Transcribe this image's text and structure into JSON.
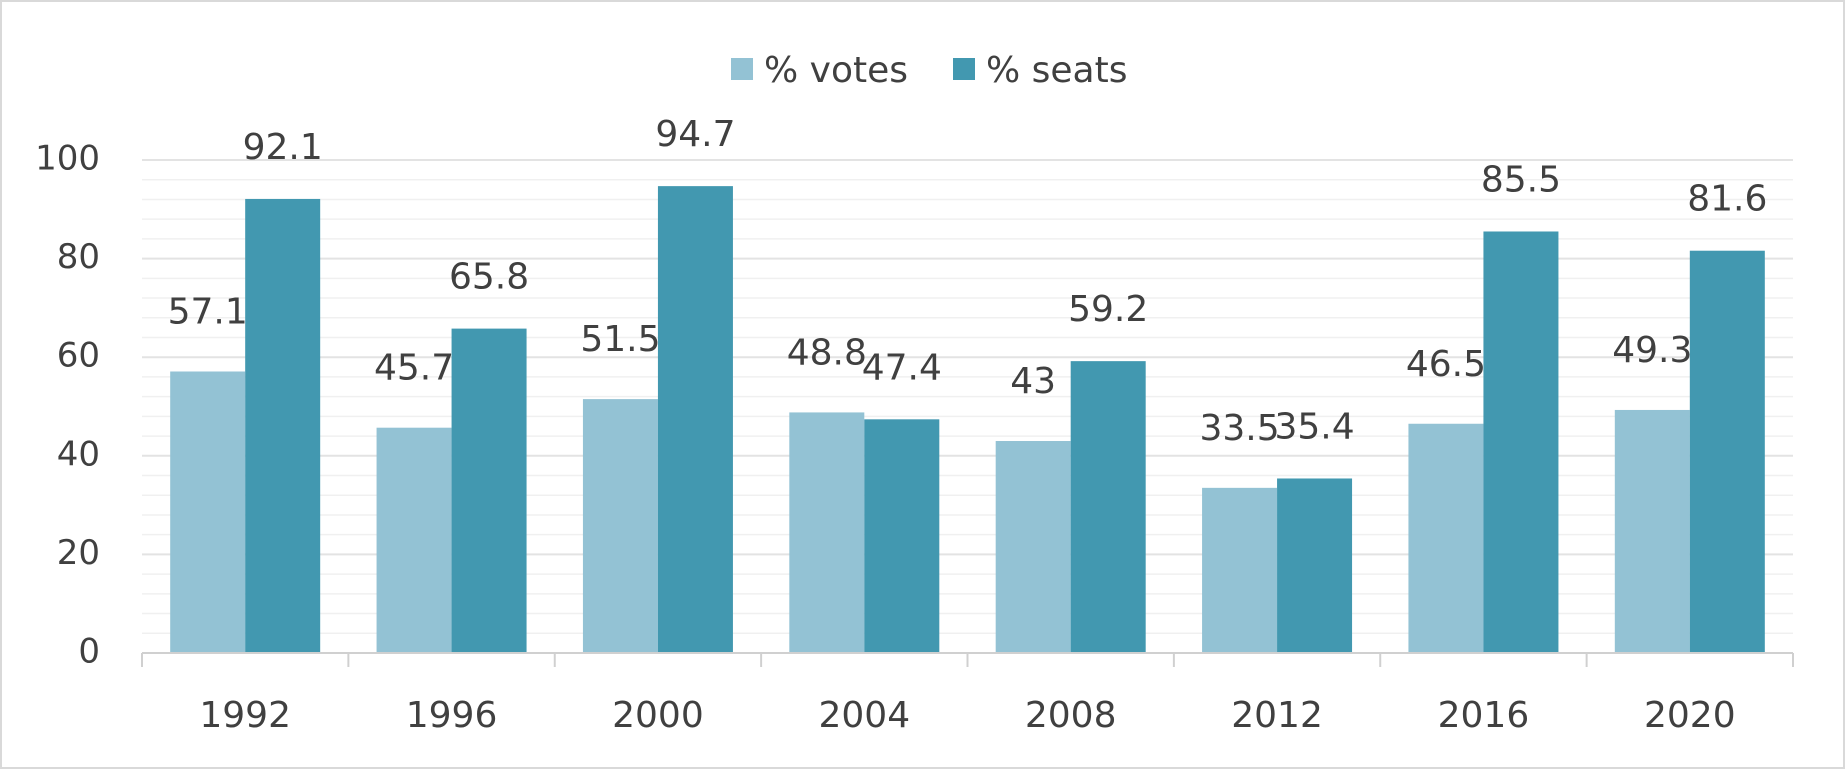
{
  "chart_data": {
    "type": "bar",
    "categories": [
      "1992",
      "1996",
      "2000",
      "2004",
      "2008",
      "2012",
      "2016",
      "2020"
    ],
    "series": [
      {
        "name": "% votes",
        "color": "#93c2d4",
        "values": [
          57.1,
          45.7,
          51.5,
          48.8,
          43,
          33.5,
          46.5,
          49.3
        ]
      },
      {
        "name": "% seats",
        "color": "#4298b0",
        "values": [
          92.1,
          65.8,
          94.7,
          47.4,
          59.2,
          35.4,
          85.5,
          81.6
        ]
      }
    ],
    "data_labels": [
      [
        "57.1",
        "45.7",
        "51.5",
        "48.8",
        "43",
        "33.5",
        "46.5",
        "49.3"
      ],
      [
        "92.1",
        "65.8",
        "94.7",
        "47.4",
        "59.2",
        "35.4",
        "85.5",
        "81.6"
      ]
    ],
    "y_ticks": [
      "0",
      "20",
      "40",
      "60",
      "80",
      "100"
    ],
    "ylim": [
      0,
      100
    ],
    "minor_grid_step": 4,
    "grid": true,
    "legend": "top-center",
    "title": "",
    "xlabel": "",
    "ylabel": ""
  }
}
